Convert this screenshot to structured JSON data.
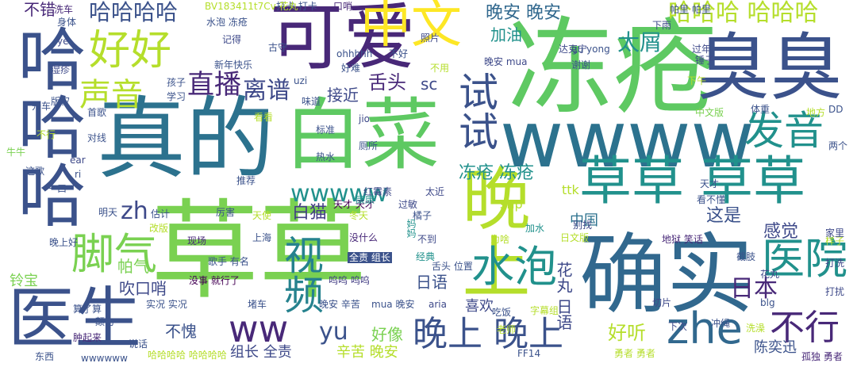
{
  "words": [
    {
      "id": "chunchuang",
      "text": "冻疮",
      "color": "#5ec962"
    },
    {
      "id": "chouchou",
      "text": "臭臭",
      "color": "#3b528b"
    },
    {
      "id": "keai",
      "text": "可爱",
      "color": "#482878"
    },
    {
      "id": "zhongwen",
      "text": "中文",
      "color": "#fde725"
    },
    {
      "id": "zhende",
      "text": "真的",
      "color": "#2c728e"
    },
    {
      "id": "baicai",
      "text": "白菜",
      "color": "#5ec962"
    },
    {
      "id": "wwww",
      "text": "wwww",
      "color": "#2c728e"
    },
    {
      "id": "hahaha-vert",
      "text": "哈哈哈",
      "color": "#3b528b"
    },
    {
      "id": "caocao-big",
      "text": "草草",
      "color": "#7ad151"
    },
    {
      "id": "queshi",
      "text": "确实",
      "color": "#31688e"
    },
    {
      "id": "yisheng",
      "text": "医生",
      "color": "#3b528b"
    },
    {
      "id": "wanshang-big",
      "text": "晚上",
      "color": "#b5de2b"
    },
    {
      "id": "caocao-right",
      "text": "草草 草草",
      "color": "#21918c"
    },
    {
      "id": "shishi",
      "text": "试试",
      "color": "#3b528b"
    },
    {
      "id": "shipin",
      "text": "视频",
      "color": "#26828e"
    },
    {
      "id": "shuipao",
      "text": "水泡",
      "color": "#21918c"
    },
    {
      "id": "yiyuan",
      "text": "医院",
      "color": "#21918c"
    },
    {
      "id": "fayin",
      "text": "发音",
      "color": "#21918c"
    },
    {
      "id": "haohao",
      "text": "好好",
      "color": "#b5de2b"
    },
    {
      "id": "shengyin",
      "text": "声音",
      "color": "#b5de2b"
    },
    {
      "id": "jiaoqi",
      "text": "脚气",
      "color": "#7ad151"
    },
    {
      "id": "ww",
      "text": "ww",
      "color": "#482878"
    },
    {
      "id": "zhe",
      "text": "zhe",
      "color": "#31688e"
    },
    {
      "id": "wanshang-mid",
      "text": "晚上 晚上",
      "color": "#3b528b"
    },
    {
      "id": "buxing",
      "text": "不行",
      "color": "#482878"
    },
    {
      "id": "zhibo",
      "text": "直播",
      "color": "#482878"
    },
    {
      "id": "lipu",
      "text": "离谱",
      "color": "#3e4989"
    },
    {
      "id": "hahaha-top",
      "text": "哈哈哈哈",
      "color": "#3b528b"
    },
    {
      "id": "hahaha-topright",
      "text": "哈哈哈 哈哈哈",
      "color": "#b5de2b"
    },
    {
      "id": "taiqu",
      "text": "太屑",
      "color": "#21918c"
    },
    {
      "id": "wanan",
      "text": "晚安 晚安",
      "color": "#31688e"
    },
    {
      "id": "jiayou",
      "text": "加油",
      "color": "#21918c"
    },
    {
      "id": "wwwww",
      "text": "wwwww",
      "color": "#21918c"
    },
    {
      "id": "chunchuang-2",
      "text": "冻疮 冻疮",
      "color": "#21918c"
    },
    {
      "id": "zh",
      "text": "zh",
      "color": "#3e4989"
    },
    {
      "id": "baimao",
      "text": "白猫",
      "color": "#433e85"
    },
    {
      "id": "shetou",
      "text": "舌头",
      "color": "#482878"
    },
    {
      "id": "jiejin",
      "text": "接近",
      "color": "#3e4989"
    },
    {
      "id": "sc",
      "text": "sc",
      "color": "#3e4989"
    },
    {
      "id": "riben",
      "text": "日本",
      "color": "#482878"
    },
    {
      "id": "ganjue",
      "text": "感觉",
      "color": "#3e4989"
    },
    {
      "id": "zheshi",
      "text": "这是",
      "color": "#3b528b"
    },
    {
      "id": "zhongguo",
      "text": "中国",
      "color": "#2c728e"
    },
    {
      "id": "riyu",
      "text": "日语",
      "color": "#3b528b"
    },
    {
      "id": "xihuan",
      "text": "喜欢",
      "color": "#3e4989"
    },
    {
      "id": "chuikoushao",
      "text": "吹口哨",
      "color": "#3e4989"
    },
    {
      "id": "lingbao",
      "text": "铃宝",
      "color": "#7ad151"
    },
    {
      "id": "pashang",
      "text": "帕气",
      "color": "#7ad151"
    },
    {
      "id": "bukui",
      "text": "不愧",
      "color": "#3b528b"
    },
    {
      "id": "yu",
      "text": "yu",
      "color": "#3b528b"
    },
    {
      "id": "haoxiang",
      "text": "好像",
      "color": "#7ad151"
    },
    {
      "id": "haoting",
      "text": "好听",
      "color": "#b5de2b"
    },
    {
      "id": "chenyixun",
      "text": "陈奕迅",
      "color": "#3b528b"
    },
    {
      "id": "zuzhang",
      "text": "组长 全责",
      "color": "#3e4989"
    },
    {
      "id": "xinku",
      "text": "辛苦 晚安",
      "color": "#b5de2b"
    },
    {
      "id": "huawan",
      "text": "花丸 日语",
      "color": "#3e4989"
    },
    {
      "id": "snp",
      "text": "snp",
      "color": "#b5de2b"
    },
    {
      "id": "ttk",
      "text": "ttk",
      "color": "#b5de2b"
    },
    {
      "id": "bucuo",
      "text": "不错",
      "color": "#482878"
    },
    {
      "id": "xiche",
      "text": "洗车",
      "color": "#482878"
    },
    {
      "id": "quanze",
      "text": "全责 组长",
      "color": "#ffffff"
    },
    {
      "id": "gesh",
      "text": "歌手 有名",
      "color": "#3b528b"
    },
    {
      "id": "meishi",
      "text": "没事 就行了",
      "color": "#440154"
    },
    {
      "id": "shuipao-2",
      "text": "水泡 冻疮",
      "color": "#3b528b"
    },
    {
      "id": "wuwu",
      "text": "呜呜 呜呜",
      "color": "#433e85"
    },
    {
      "id": "meisheme",
      "text": "没什么",
      "color": "#482878"
    },
    {
      "id": "shanghai",
      "text": "上海",
      "color": "#3b528b"
    },
    {
      "id": "xianchang",
      "text": "现场",
      "color": "#482878"
    },
    {
      "id": "tianshi",
      "text": "天使",
      "color": "#b5de2b"
    },
    {
      "id": "dongtian",
      "text": "冬天",
      "color": "#b5de2b"
    },
    {
      "id": "tiancai",
      "text": "天才 天才",
      "color": "#440154"
    },
    {
      "id": "taijin",
      "text": "太近",
      "color": "#3e4989"
    },
    {
      "id": "guomin",
      "text": "过敏",
      "color": "#3e4989"
    },
    {
      "id": "juzi",
      "text": "橘子",
      "color": "#3b528b"
    },
    {
      "id": "hongmeisu",
      "text": "红霉素",
      "color": "#3e4989"
    },
    {
      "id": "momo",
      "text": "妈妈",
      "color": "#21918c"
    },
    {
      "id": "kangkang",
      "text": "康康",
      "color": "#21918c"
    },
    {
      "id": "jingdian",
      "text": "经典",
      "color": "#21918c"
    },
    {
      "id": "chifan",
      "text": "吃饭",
      "color": "#3b528b"
    },
    {
      "id": "zimuzu",
      "text": "字幕组",
      "color": "#b5de2b"
    },
    {
      "id": "qiepian",
      "text": "切片",
      "color": "#3e4989"
    },
    {
      "id": "xiazao",
      "text": "洗澡",
      "color": "#b5de2b"
    },
    {
      "id": "chongsheng",
      "text": "冲绳",
      "color": "#3b528b"
    },
    {
      "id": "jiezhi",
      "text": "截肢",
      "color": "#3b528b"
    },
    {
      "id": "diyu",
      "text": "地狱 笑话",
      "color": "#482878"
    },
    {
      "id": "yongzhe",
      "text": "勇者 勇者",
      "color": "#b5de2b"
    },
    {
      "id": "gudu",
      "text": "孤独 勇者",
      "color": "#482878"
    },
    {
      "id": "dongxi",
      "text": "东西",
      "color": "#3b528b"
    },
    {
      "id": "zhongqilai",
      "text": "肿起来",
      "color": "#482878"
    },
    {
      "id": "shuohua",
      "text": "说话",
      "color": "#3b528b"
    },
    {
      "id": "hahahaha-small",
      "text": "哈哈哈哈 哈哈哈哈",
      "color": "#b5de2b"
    },
    {
      "id": "wwwwww",
      "text": "wwwwww",
      "color": "#3b528b"
    },
    {
      "id": "jiushi",
      "text": "实况 实况",
      "color": "#3b528b"
    },
    {
      "id": "duche",
      "text": "堵车",
      "color": "#3b528b"
    },
    {
      "id": "wanan-xinku",
      "text": "晚安 辛苦",
      "color": "#3b528b"
    },
    {
      "id": "mua-wanan",
      "text": "mua 晚安",
      "color": "#3b528b"
    },
    {
      "id": "aria",
      "text": "aria",
      "color": "#3e4989"
    },
    {
      "id": "laoshi",
      "text": "老师",
      "color": "#b5de2b"
    },
    {
      "id": "FF14",
      "text": "FF14",
      "color": "#3b528b"
    },
    {
      "id": "xiaci",
      "text": "下次",
      "color": "#3e4989"
    },
    {
      "id": "blg",
      "text": "blg",
      "color": "#3b528b"
    },
    {
      "id": "huawan-2",
      "text": "花丸",
      "color": "#3e4989"
    },
    {
      "id": "dalian",
      "text": "打扰",
      "color": "#3e4989"
    },
    {
      "id": "dadai",
      "text": "打洗",
      "color": "#3e4989"
    },
    {
      "id": "yangzi",
      "text": "样子",
      "color": "#b5de2b"
    },
    {
      "id": "jiali",
      "text": "家里",
      "color": "#3e4989"
    },
    {
      "id": "kankanzhe",
      "text": "看不懂",
      "color": "#3b528b"
    },
    {
      "id": "riwenban",
      "text": "日文版",
      "color": "#b5de2b"
    },
    {
      "id": "biezhao",
      "text": "别找",
      "color": "#3e4989"
    },
    {
      "id": "tiancai-2",
      "text": "天才",
      "color": "#3b528b"
    },
    {
      "id": "jiashui",
      "text": "加水",
      "color": "#21918c"
    },
    {
      "id": "weilai",
      "text": "为啥",
      "color": "#b5de2b"
    },
    {
      "id": "budao",
      "text": "不到",
      "color": "#3e4989"
    },
    {
      "id": "shetou-weizhi",
      "text": "舌头 位置",
      "color": "#3b528b"
    },
    {
      "id": "tizhong",
      "text": "体重",
      "color": "#3b528b"
    },
    {
      "id": "DD",
      "text": "DD",
      "color": "#3b528b"
    },
    {
      "id": "liangge",
      "text": "两个",
      "color": "#3b528b"
    },
    {
      "id": "zhongwenban",
      "text": "中文版",
      "color": "#7ad151"
    },
    {
      "id": "difang",
      "text": "地方",
      "color": "#b5de2b"
    },
    {
      "id": "xiawu",
      "text": "下午",
      "color": "#b5de2b"
    },
    {
      "id": "guonian",
      "text": "过年",
      "color": "#3e4989"
    },
    {
      "id": "chuizi",
      "text": "锤子",
      "color": "#3e4989"
    },
    {
      "id": "xiayu",
      "text": "下雨",
      "color": "#3e4989"
    },
    {
      "id": "pari",
      "text": "帕里 帕里",
      "color": "#3b528b"
    },
    {
      "id": "dakelu",
      "text": "达克宁",
      "color": "#3e4989"
    },
    {
      "id": "zhaopian",
      "text": "照片",
      "color": "#3e4989"
    },
    {
      "id": "buhao",
      "text": "不好",
      "color": "#3b528b"
    },
    {
      "id": "buyong",
      "text": "不用",
      "color": "#b5de2b"
    },
    {
      "id": "wanan-mua",
      "text": "晚安 mua",
      "color": "#3e4989"
    },
    {
      "id": "xiexie",
      "text": "谢谢",
      "color": "#3b528b"
    },
    {
      "id": "guyong",
      "text": "gu yong",
      "color": "#3b528b"
    },
    {
      "id": "ohhhhh",
      "text": "ohhhhh",
      "color": "#3b528b"
    },
    {
      "id": "haonan",
      "text": "好难",
      "color": "#3b528b"
    },
    {
      "id": "kouhao",
      "text": "口哨",
      "color": "#482878"
    },
    {
      "id": "daka",
      "text": "打卡 打卡",
      "color": "#3b528b"
    },
    {
      "id": "BV",
      "text": "BV183411t7Cv 花丸",
      "color": "#b5de2b"
    },
    {
      "id": "shenti",
      "text": "身体",
      "color": "#3b528b"
    },
    {
      "id": "jide",
      "text": "记得",
      "color": "#3e4989"
    },
    {
      "id": "gudian",
      "text": "古守",
      "color": "#3b528b"
    },
    {
      "id": "xinnian",
      "text": "新年快乐",
      "color": "#3b528b"
    },
    {
      "id": "uzi",
      "text": "uzi",
      "color": "#3b528b"
    },
    {
      "id": "weidao",
      "text": "味道",
      "color": "#3b528b"
    },
    {
      "id": "jio",
      "text": "jio",
      "color": "#3e4989"
    },
    {
      "id": "shiti",
      "text": "湿疹",
      "color": "#3e4989"
    },
    {
      "id": "ye",
      "text": "ye",
      "color": "#3e4989"
    },
    {
      "id": "haizi",
      "text": "孩子",
      "color": "#3b528b"
    },
    {
      "id": "xuexi",
      "text": "学习",
      "color": "#3b528b"
    },
    {
      "id": "kaiche",
      "text": "开车",
      "color": "#3b528b"
    },
    {
      "id": "banquan",
      "text": "版权",
      "color": "#3b528b"
    },
    {
      "id": "shouge",
      "text": "首歌",
      "color": "#3b528b"
    },
    {
      "id": "kankan",
      "text": "看看",
      "color": "#b5de2b"
    },
    {
      "id": "biaozhun",
      "text": "标准",
      "color": "#3b528b"
    },
    {
      "id": "reshui",
      "text": "热水",
      "color": "#3b528b"
    },
    {
      "id": "cesuo",
      "text": "厕所",
      "color": "#3b528b"
    },
    {
      "id": "niuniu",
      "text": "牛牛",
      "color": "#7ad151"
    },
    {
      "id": "duixian",
      "text": "对线",
      "color": "#3b528b"
    },
    {
      "id": "zhege",
      "text": "这歌",
      "color": "#3b528b"
    },
    {
      "id": "ear",
      "text": "ear",
      "color": "#3e4989"
    },
    {
      "id": "ri",
      "text": "ri",
      "color": "#3b528b"
    },
    {
      "id": "yikou",
      "text": "一口",
      "color": "#3b528b"
    },
    {
      "id": "tuijian",
      "text": "推荐",
      "color": "#3b528b"
    },
    {
      "id": "mingtian",
      "text": "明天",
      "color": "#3b528b"
    },
    {
      "id": "guji",
      "text": "估计",
      "color": "#3b528b"
    },
    {
      "id": "lihai",
      "text": "厉害",
      "color": "#3b528b"
    },
    {
      "id": "gaiban",
      "text": "改版",
      "color": "#b5de2b"
    },
    {
      "id": "suanle",
      "text": "算了算",
      "color": "#3b528b"
    },
    {
      "id": "dianyun",
      "text": "颠勺",
      "color": "#3b528b"
    },
    {
      "id": "wanbuxing",
      "text": "晚上好",
      "color": "#3b528b"
    },
    {
      "id": "buyong-2",
      "text": "不行",
      "color": "#b5de2b"
    }
  ]
}
